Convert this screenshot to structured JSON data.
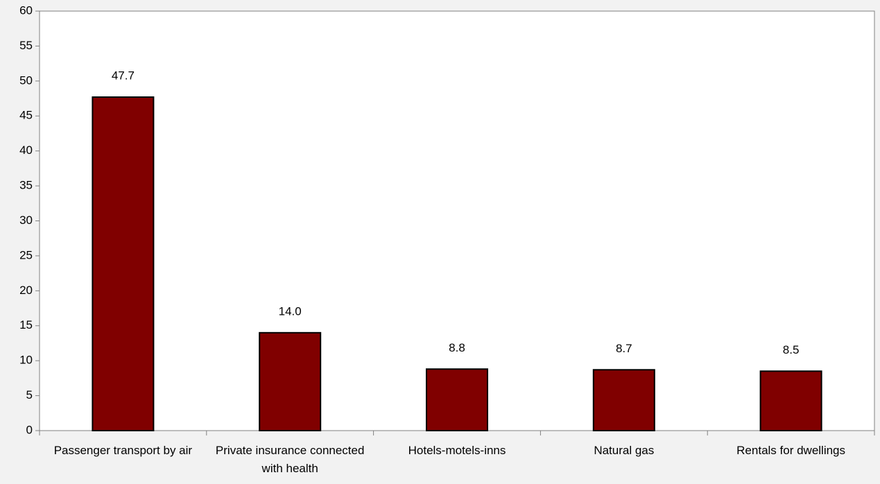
{
  "chart_data": {
    "type": "bar",
    "categories": [
      "Passenger transport by air",
      "Private insurance connected with health",
      "Hotels-motels-inns",
      "Natural gas",
      "Rentals for dwellings"
    ],
    "values": [
      47.7,
      14.0,
      8.8,
      8.7,
      8.5
    ],
    "value_labels": [
      "47.7",
      "14.0",
      "8.8",
      "8.7",
      "8.5"
    ],
    "color": "#800000",
    "ylim": [
      0,
      60
    ],
    "yticks": [
      0,
      5,
      10,
      15,
      20,
      25,
      30,
      35,
      40,
      45,
      50,
      55,
      60
    ],
    "grid": false
  }
}
